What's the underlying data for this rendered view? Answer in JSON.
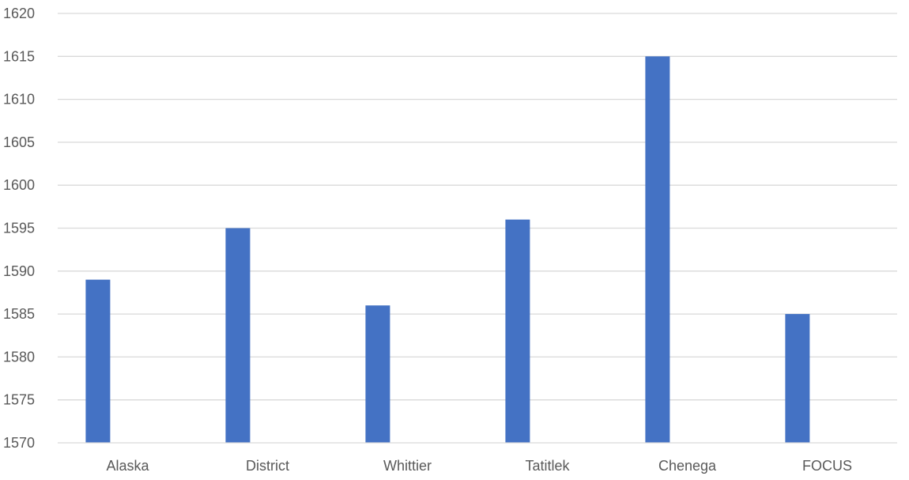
{
  "chart_data": {
    "type": "bar",
    "title": "",
    "xlabel": "",
    "ylabel": "",
    "categories": [
      "Alaska",
      "District",
      "Whittier",
      "Tatitlek",
      "Chenega",
      "FOCUS"
    ],
    "series": [
      {
        "values": [
          1589,
          1595,
          1586,
          1596,
          1615,
          1585
        ],
        "color": "#4472c4"
      }
    ],
    "ylim": [
      1570,
      1620
    ],
    "yticks": [
      1570,
      1575,
      1580,
      1585,
      1590,
      1595,
      1600,
      1605,
      1610,
      1615,
      1620
    ],
    "grid": true,
    "legend": "none"
  }
}
